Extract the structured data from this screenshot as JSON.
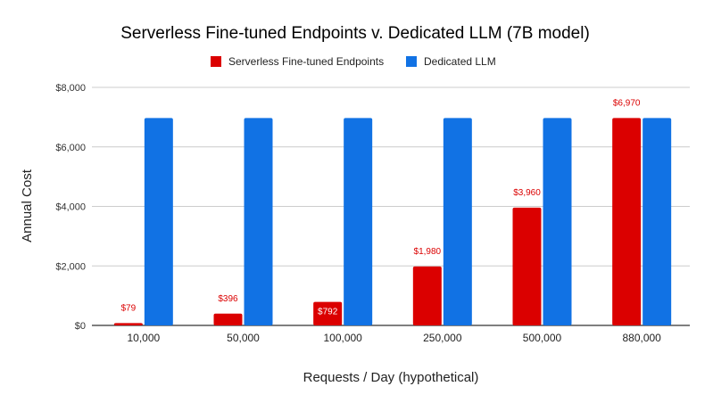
{
  "chart_data": {
    "type": "bar",
    "title": "Serverless Fine-tuned Endpoints v. Dedicated LLM (7B model)",
    "xlabel": "Requests / Day (hypothetical)",
    "ylabel": "Annual Cost",
    "ylim": [
      0,
      8000
    ],
    "yticks": [
      0,
      2000,
      4000,
      6000,
      8000
    ],
    "ytick_labels": [
      "$0",
      "$2,000",
      "$4,000",
      "$6,000",
      "$8,000"
    ],
    "grid": true,
    "legend": "top",
    "categories": [
      "10,000",
      "50,000",
      "100,000",
      "250,000",
      "500,000",
      "880,000"
    ],
    "series": [
      {
        "name": "Serverless Fine-tuned Endpoints",
        "color": "#db0000",
        "values": [
          79,
          396,
          792,
          1980,
          3960,
          6970
        ],
        "data_labels": [
          "$79",
          "$396",
          "$792",
          "$1,980",
          "$3,960",
          "$6,970"
        ]
      },
      {
        "name": "Dedicated LLM",
        "color": "#1172e4",
        "values": [
          6970,
          6970,
          6970,
          6970,
          6970,
          6970
        ]
      }
    ]
  }
}
